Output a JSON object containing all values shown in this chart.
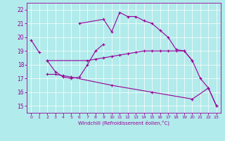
{
  "bg_color": "#b2ebeb",
  "line_color": "#990099",
  "xlim": [
    -0.5,
    23.5
  ],
  "ylim": [
    14.5,
    22.5
  ],
  "yticks": [
    15,
    16,
    17,
    18,
    19,
    20,
    21,
    22
  ],
  "xticks": [
    0,
    1,
    2,
    3,
    4,
    5,
    6,
    7,
    8,
    9,
    10,
    11,
    12,
    13,
    14,
    15,
    16,
    17,
    18,
    19,
    20,
    21,
    22,
    23
  ],
  "xlabel": "Windchill (Refroidissement éolien,°C)",
  "series": [
    {
      "x": [
        0,
        1
      ],
      "y": [
        19.8,
        18.9
      ]
    },
    {
      "comment": "zigzag x=2-9",
      "x": [
        2,
        3,
        4,
        5,
        6,
        7,
        8,
        9
      ],
      "y": [
        18.3,
        17.5,
        17.1,
        17.0,
        17.1,
        18.0,
        19.0,
        19.5
      ]
    },
    {
      "x": [
        2,
        7,
        8,
        9,
        10,
        11,
        12,
        13,
        14,
        15,
        16,
        17,
        18,
        19,
        20
      ],
      "y": [
        18.3,
        18.3,
        18.4,
        18.5,
        18.6,
        18.7,
        18.8,
        18.9,
        19.0,
        19.0,
        19.0,
        19.0,
        19.0,
        19.0,
        18.3
      ]
    },
    {
      "x": [
        6,
        9,
        10,
        11,
        12,
        13,
        14,
        15,
        16,
        17,
        18,
        19,
        20,
        21,
        22,
        23
      ],
      "y": [
        21.0,
        21.3,
        20.4,
        21.8,
        21.5,
        21.5,
        21.2,
        21.0,
        20.5,
        20.0,
        19.1,
        19.0,
        18.3,
        17.0,
        16.3,
        15.0
      ]
    },
    {
      "x": [
        2,
        3,
        4,
        5,
        10,
        15,
        20,
        22,
        23
      ],
      "y": [
        17.3,
        17.3,
        17.2,
        17.1,
        16.5,
        16.0,
        15.5,
        16.3,
        15.0
      ]
    }
  ]
}
